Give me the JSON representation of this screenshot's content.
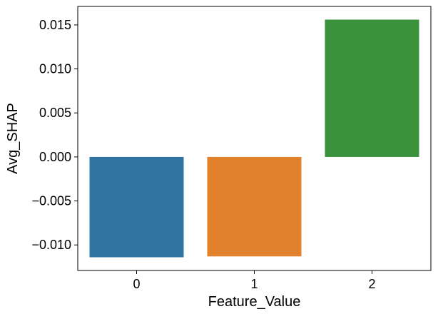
{
  "chart_data": {
    "type": "bar",
    "title": "",
    "xlabel": "Feature_Value",
    "ylabel": "Avg_SHAP",
    "categories": [
      "0",
      "1",
      "2"
    ],
    "values": [
      -0.0114,
      -0.0113,
      0.0156
    ],
    "ylim": [
      -0.0129,
      0.0171
    ],
    "yticks": [
      -0.01,
      -0.005,
      0.0,
      0.005,
      0.01,
      0.015
    ],
    "ytick_labels": [
      "−0.010",
      "−0.005",
      "0.000",
      "0.005",
      "0.010",
      "0.015"
    ],
    "colors": [
      "#3274a1",
      "#e1812c",
      "#3a923a"
    ],
    "grid": false,
    "legend": "none"
  }
}
